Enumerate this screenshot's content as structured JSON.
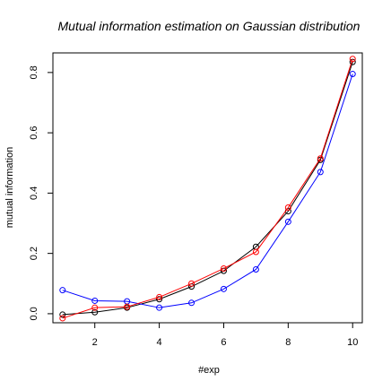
{
  "chart_data": {
    "type": "line",
    "title": "Mutual information estimation on Gaussian distribution",
    "xlabel": "#exp",
    "ylabel": "mutual information",
    "xlim": [
      0.7,
      10.3
    ],
    "ylim": [
      -0.03,
      0.865
    ],
    "x_ticks": [
      2,
      4,
      6,
      8,
      10
    ],
    "y_ticks": [
      0.0,
      0.2,
      0.4,
      0.6,
      0.8
    ],
    "y_tick_labels": [
      "0.0",
      "0.2",
      "0.4",
      "0.6",
      "0.8"
    ],
    "grid": false,
    "legend": "none",
    "x": [
      1,
      2,
      3,
      4,
      5,
      6,
      7,
      8,
      9,
      10
    ],
    "series": [
      {
        "color": "#000000",
        "values": [
          -0.003,
          0.005,
          0.02,
          0.048,
          0.09,
          0.142,
          0.222,
          0.34,
          0.51,
          0.835
        ]
      },
      {
        "color": "#0000ff",
        "values": [
          0.078,
          0.043,
          0.041,
          0.02,
          0.036,
          0.082,
          0.147,
          0.305,
          0.47,
          0.795
        ]
      },
      {
        "color": "#ff0000",
        "values": [
          -0.015,
          0.02,
          0.023,
          0.055,
          0.1,
          0.15,
          0.205,
          0.352,
          0.515,
          0.845
        ]
      }
    ]
  }
}
